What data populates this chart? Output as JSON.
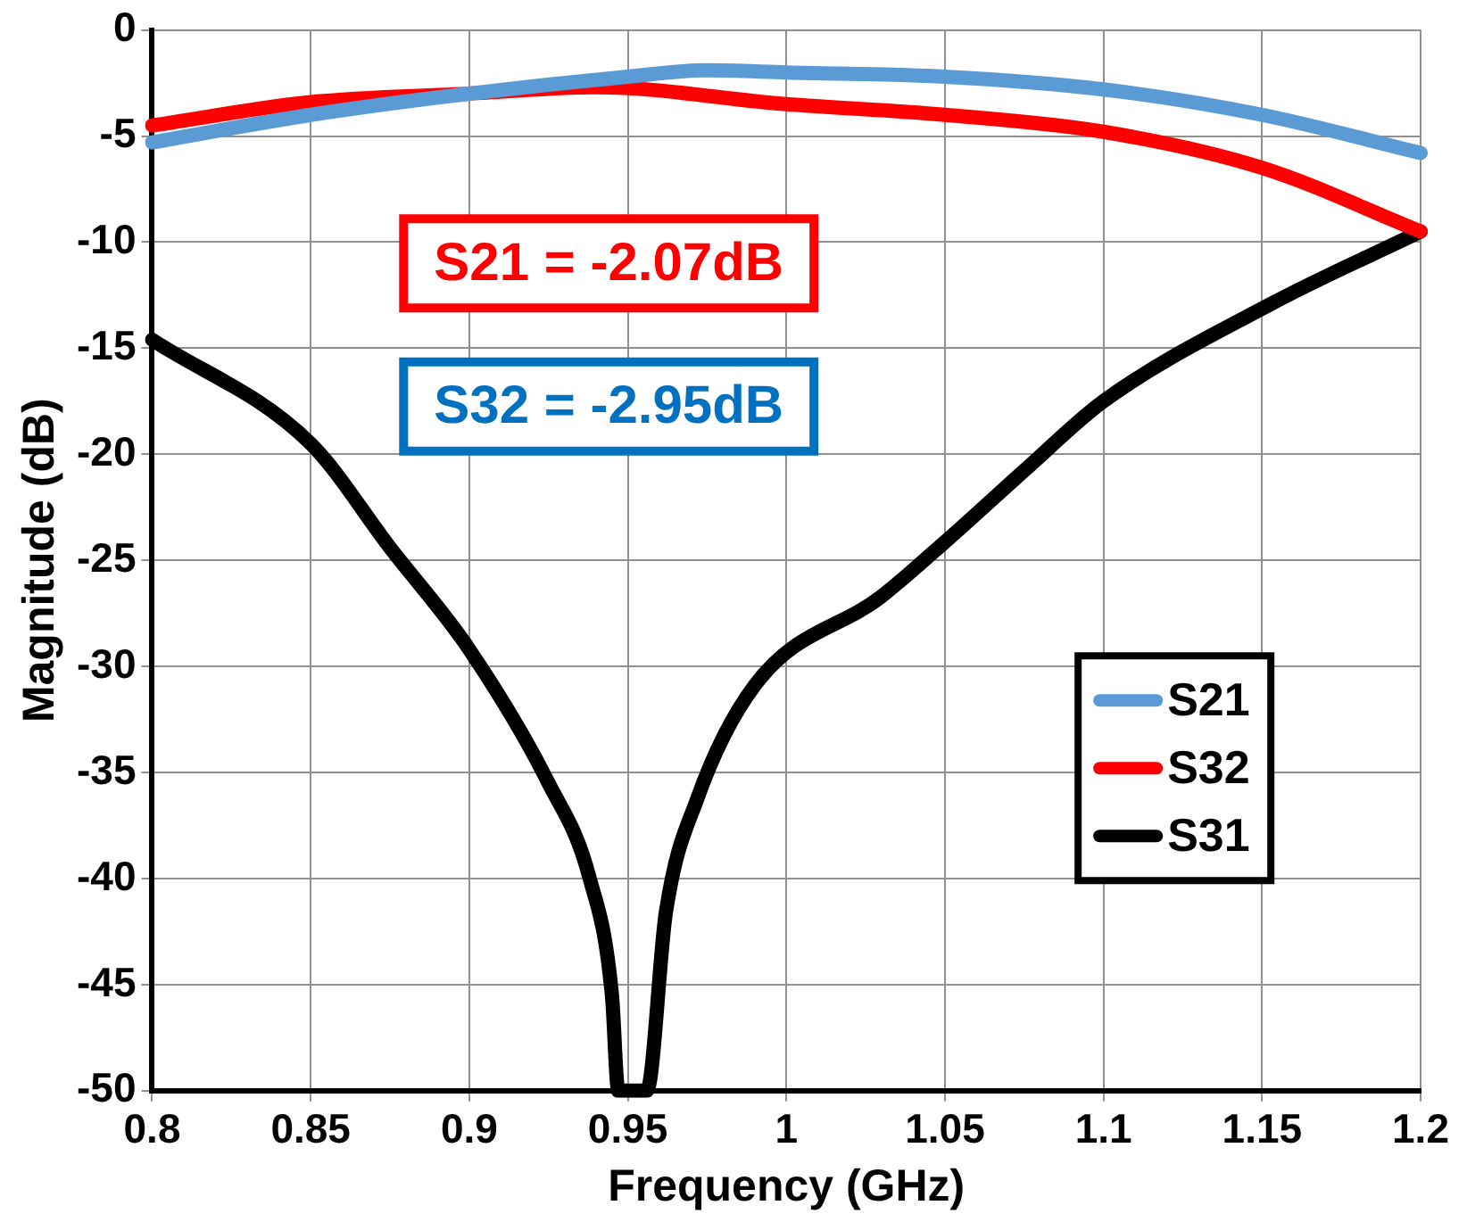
{
  "chart_data": {
    "type": "line",
    "xlabel": "Frequency (GHz)",
    "ylabel": "Magnitude (dB)",
    "xlim": [
      0.8,
      1.2
    ],
    "xticks": [
      0.8,
      0.85,
      0.9,
      0.95,
      1,
      1.05,
      1.1,
      1.15,
      1.2
    ],
    "ylim": [
      -50,
      0
    ],
    "yticks": [
      -50,
      -45,
      -40,
      -35,
      -30,
      -25,
      -20,
      -15,
      -10,
      -5,
      0
    ],
    "grid": true,
    "legend": "right",
    "marker": "none",
    "line_style": "solid",
    "annotations": [
      "S21 = -2.07dB",
      "S32 = -2.95dB"
    ],
    "series": [
      {
        "name": "S21",
        "color": "#5b9bd5",
        "x": [
          0.8,
          0.85,
          0.9,
          0.95,
          0.975,
          1.0,
          1.05,
          1.1,
          1.15,
          1.2
        ],
        "values": [
          -5.3,
          -4.0,
          -3.0,
          -2.2,
          -1.9,
          -2.0,
          -2.2,
          -2.8,
          -4.0,
          -5.8
        ]
      },
      {
        "name": "S32",
        "color": "#ff0000",
        "x": [
          0.8,
          0.85,
          0.9,
          0.94,
          1.0,
          1.05,
          1.1,
          1.15,
          1.2
        ],
        "values": [
          -4.5,
          -3.4,
          -3.0,
          -2.7,
          -3.5,
          -4.0,
          -4.8,
          -6.5,
          -9.5
        ]
      },
      {
        "name": "S31",
        "color": "#000000",
        "x": [
          0.8,
          0.85,
          0.875,
          0.9,
          0.925,
          0.938,
          0.945,
          0.947,
          0.956,
          0.962,
          0.972,
          0.99,
          1.03,
          1.051,
          1.077,
          1.1,
          1.153,
          1.2
        ],
        "values": [
          -14.6,
          -19.5,
          -24.4,
          -29.2,
          -35.5,
          -40,
          -45.5,
          -50,
          -50,
          -41.6,
          -36.2,
          -30.9,
          -26.7,
          -24,
          -20.5,
          -17.5,
          -12.9,
          -9.5
        ]
      }
    ]
  }
}
